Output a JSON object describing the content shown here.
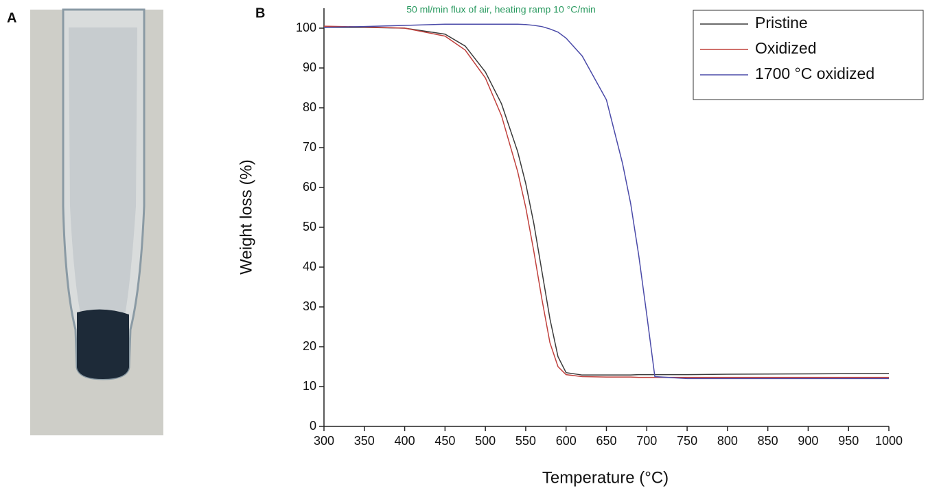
{
  "panel_a": {
    "label": "A"
  },
  "chart_data": {
    "type": "line",
    "panel_label": "B",
    "annotation": "50 ml/min flux of air, heating ramp 10 °C/min",
    "xlabel": "Temperature (°C)",
    "ylabel": "Weight loss (%)",
    "x": [
      300,
      350,
      400,
      450,
      475,
      500,
      520,
      540,
      550,
      560,
      570,
      580,
      590,
      600,
      620,
      650,
      670,
      680,
      690,
      700,
      710,
      750,
      800,
      900,
      1000
    ],
    "series": [
      {
        "name": "Pristine",
        "color": "#3a3a3a",
        "values": [
          100.2,
          100.2,
          100,
          98.5,
          95.5,
          89,
          81,
          69,
          61,
          51,
          39,
          27,
          17.5,
          13.5,
          12.9,
          12.9,
          12.9,
          12.9,
          13,
          13,
          13,
          13,
          13.1,
          13.2,
          13.3
        ]
      },
      {
        "name": "Oxidized",
        "color": "#c0403c",
        "values": [
          100.5,
          100.3,
          100,
          98,
          94.5,
          87.5,
          78,
          64,
          55,
          44,
          32,
          21,
          15,
          13,
          12.5,
          12.4,
          12.4,
          12.4,
          12.3,
          12.3,
          12.3,
          12.3,
          12.3,
          12.3,
          12.3
        ]
      },
      {
        "name": " 1700 °C oxidized",
        "color": "#4a4aa8",
        "values": [
          100.2,
          100.4,
          100.7,
          101,
          101,
          101,
          101,
          101,
          100.9,
          100.7,
          100.4,
          99.8,
          99,
          97.5,
          93,
          82,
          66,
          56,
          43,
          28,
          12.5,
          12,
          12,
          12,
          12
        ]
      }
    ],
    "xlim": [
      300,
      1000
    ],
    "xticks": [
      300,
      350,
      400,
      450,
      500,
      550,
      600,
      650,
      700,
      750,
      800,
      850,
      900,
      950,
      1000
    ],
    "ylim": [
      0,
      105
    ],
    "yticks": [
      0,
      10,
      20,
      30,
      40,
      50,
      60,
      70,
      80,
      90,
      100
    ],
    "grid": false,
    "legend": "upper right"
  }
}
